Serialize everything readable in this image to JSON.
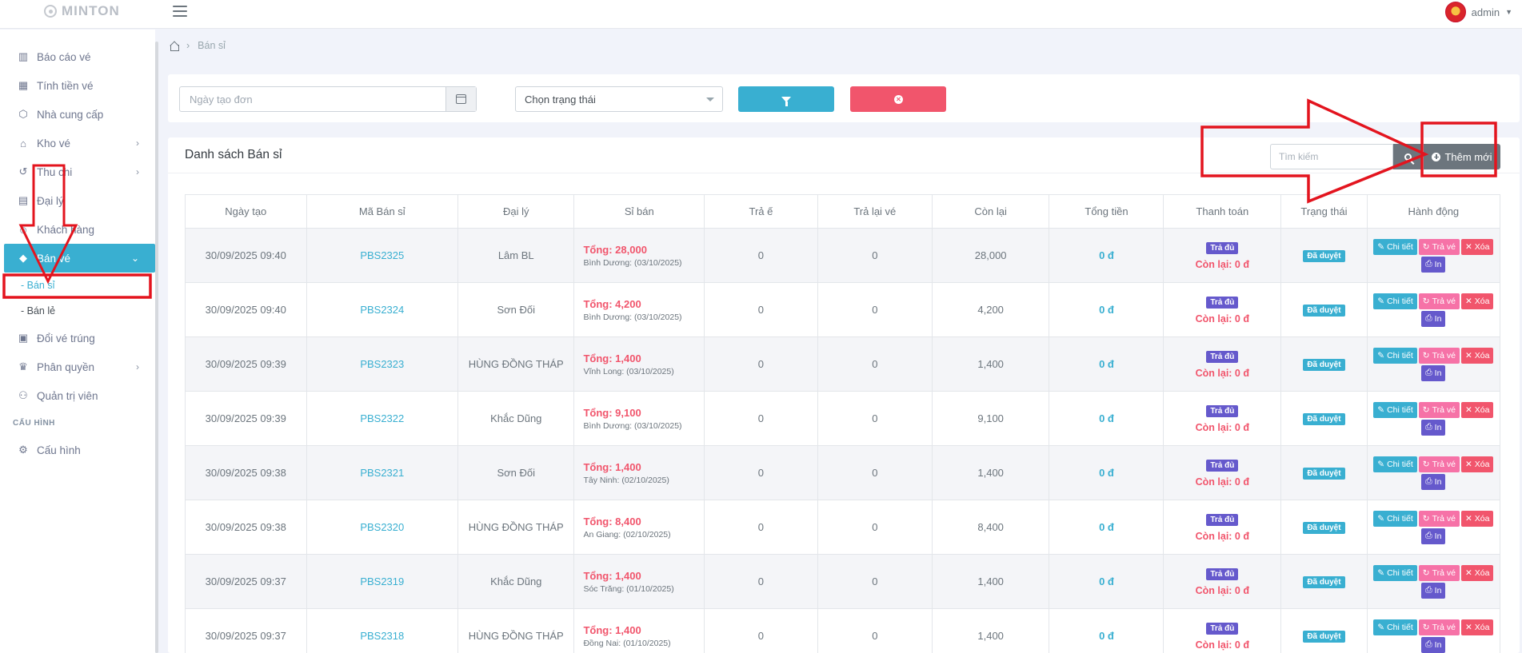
{
  "topbar": {
    "logo": "MINTON",
    "user": "admin"
  },
  "sidebar": {
    "items": [
      {
        "label": "Báo cáo vé",
        "icon": "bar-chart-icon"
      },
      {
        "label": "Tính tiền vé",
        "icon": "calculator-icon"
      },
      {
        "label": "Nhà cung cấp",
        "icon": "box-icon"
      },
      {
        "label": "Kho vé",
        "icon": "home-icon",
        "has_children": true
      },
      {
        "label": "Thu chi",
        "icon": "history-icon",
        "has_children": true
      },
      {
        "label": "Đại lý",
        "icon": "building-icon"
      },
      {
        "label": "Khách hàng",
        "icon": "users-icon"
      },
      {
        "label": "Bán vé",
        "icon": "tag-icon",
        "active": true,
        "expanded": true
      }
    ],
    "sub_items": [
      {
        "label": "- Bán sỉ",
        "current": true
      },
      {
        "label": "- Bán lẻ"
      }
    ],
    "items_after": [
      {
        "label": "Đổi vé trúng",
        "icon": "ticket-icon"
      },
      {
        "label": "Phân quyền",
        "icon": "crown-icon",
        "has_children": true
      },
      {
        "label": "Quản trị viên",
        "icon": "user-admin-icon"
      }
    ],
    "section_title": "CẤU HÌNH",
    "config_item": {
      "label": "Cấu hình",
      "icon": "gear-icon"
    }
  },
  "breadcrumb": {
    "current": "Bán sỉ"
  },
  "filters": {
    "date_placeholder": "Ngày tạo đơn",
    "status_placeholder": "Chọn trạng thái"
  },
  "list": {
    "title": "Danh sách Bán sỉ",
    "search_placeholder": "Tìm kiếm",
    "add_label": "Thêm mới"
  },
  "table": {
    "headers": [
      "Ngày tạo",
      "Mã Bán sỉ",
      "Đại lý",
      "Sỉ bán",
      "Trả ế",
      "Trả lại vé",
      "Còn lại",
      "Tổng tiền",
      "Thanh toán",
      "Trạng thái",
      "Hành động"
    ],
    "actions": {
      "detail": "Chi tiết",
      "return": "Trả vé",
      "delete": "Xóa",
      "print": "In"
    },
    "rows": [
      {
        "date": "30/09/2025 09:40",
        "code": "PBS2325",
        "agent": "Lâm BL",
        "total": "Tổng: 28,000",
        "sub": "Bình Dương: (03/10/2025)",
        "unsold": "0",
        "returned": "0",
        "remaining": "28,000",
        "amount": "0 đ",
        "pay_badge": "Trả đủ",
        "pay_remain": "Còn lại: 0 đ",
        "status": "Đã duyệt"
      },
      {
        "date": "30/09/2025 09:40",
        "code": "PBS2324",
        "agent": "Sơn Đối",
        "total": "Tổng: 4,200",
        "sub": "Bình Dương: (03/10/2025)",
        "unsold": "0",
        "returned": "0",
        "remaining": "4,200",
        "amount": "0 đ",
        "pay_badge": "Trả đủ",
        "pay_remain": "Còn lại: 0 đ",
        "status": "Đã duyệt"
      },
      {
        "date": "30/09/2025 09:39",
        "code": "PBS2323",
        "agent": "HÙNG ĐỒNG THÁP",
        "total": "Tổng: 1,400",
        "sub": "Vĩnh Long: (03/10/2025)",
        "unsold": "0",
        "returned": "0",
        "remaining": "1,400",
        "amount": "0 đ",
        "pay_badge": "Trả đủ",
        "pay_remain": "Còn lại: 0 đ",
        "status": "Đã duyệt"
      },
      {
        "date": "30/09/2025 09:39",
        "code": "PBS2322",
        "agent": "Khắc Dũng",
        "total": "Tổng: 9,100",
        "sub": "Bình Dương: (03/10/2025)",
        "unsold": "0",
        "returned": "0",
        "remaining": "9,100",
        "amount": "0 đ",
        "pay_badge": "Trả đủ",
        "pay_remain": "Còn lại: 0 đ",
        "status": "Đã duyệt"
      },
      {
        "date": "30/09/2025 09:38",
        "code": "PBS2321",
        "agent": "Sơn Đối",
        "total": "Tổng: 1,400",
        "sub": "Tây Ninh: (02/10/2025)",
        "unsold": "0",
        "returned": "0",
        "remaining": "1,400",
        "amount": "0 đ",
        "pay_badge": "Trả đủ",
        "pay_remain": "Còn lại: 0 đ",
        "status": "Đã duyệt"
      },
      {
        "date": "30/09/2025 09:38",
        "code": "PBS2320",
        "agent": "HÙNG ĐỒNG THÁP",
        "total": "Tổng: 8,400",
        "sub": "An Giang: (02/10/2025)",
        "unsold": "0",
        "returned": "0",
        "remaining": "8,400",
        "amount": "0 đ",
        "pay_badge": "Trả đủ",
        "pay_remain": "Còn lại: 0 đ",
        "status": "Đã duyệt"
      },
      {
        "date": "30/09/2025 09:37",
        "code": "PBS2319",
        "agent": "Khắc Dũng",
        "total": "Tổng: 1,400",
        "sub": "Sóc Trăng: (01/10/2025)",
        "unsold": "0",
        "returned": "0",
        "remaining": "1,400",
        "amount": "0 đ",
        "pay_badge": "Trả đủ",
        "pay_remain": "Còn lại: 0 đ",
        "status": "Đã duyệt"
      },
      {
        "date": "30/09/2025 09:37",
        "code": "PBS2318",
        "agent": "HÙNG ĐỒNG THÁP",
        "total": "Tổng: 1,400",
        "sub": "Đồng Nai: (01/10/2025)",
        "unsold": "0",
        "returned": "0",
        "remaining": "1,400",
        "amount": "0 đ",
        "pay_badge": "Trả đủ",
        "pay_remain": "Còn lại: 0 đ",
        "status": "Đã duyệt"
      }
    ]
  },
  "colors": {
    "accent": "#39afd1",
    "danger": "#f1556c",
    "pink": "#f672a7",
    "purple": "#6559cc",
    "annotation": "#e3141e"
  }
}
